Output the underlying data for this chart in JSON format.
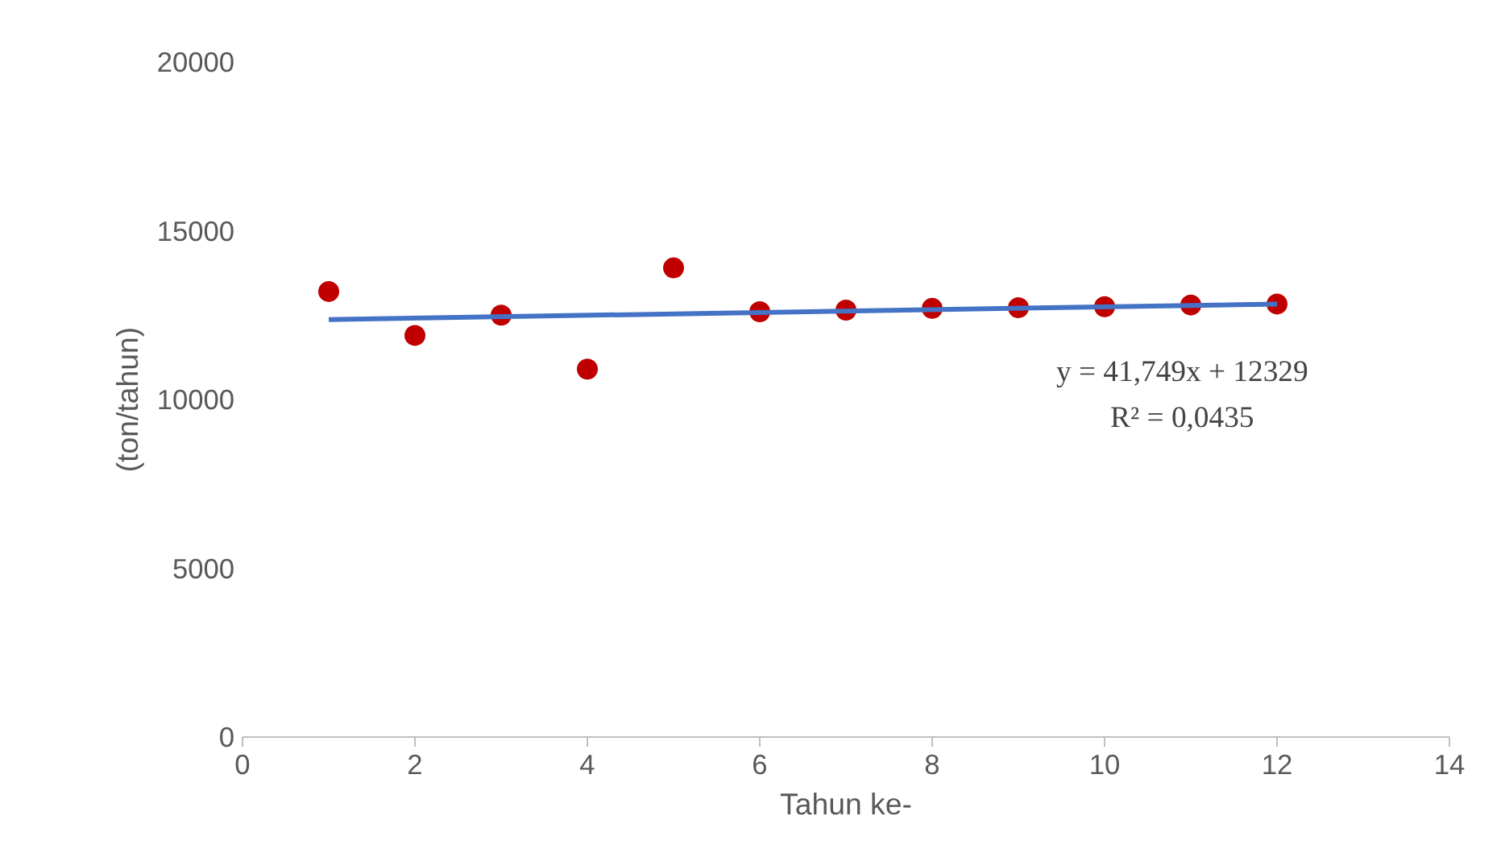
{
  "chart_data": {
    "type": "scatter",
    "xlabel": "Tahun ke-",
    "ylabel": "(ton/tahun)",
    "x": [
      1,
      2,
      3,
      4,
      5,
      6,
      7,
      8,
      9,
      10,
      11,
      12
    ],
    "series": [
      {
        "color": "#c00000",
        "marker": "circle",
        "values": [
          13200,
          11900,
          12500,
          10900,
          13900,
          12600,
          12650,
          12700,
          12720,
          12750,
          12800,
          12830
        ]
      },
      {
        "type": "line",
        "color": "#4472c4",
        "x": [
          1,
          12
        ],
        "values": [
          12370,
          12830
        ]
      }
    ],
    "annotations": [
      "y = 41,749x + 12329",
      "R² = 0,0435"
    ],
    "xlim": [
      0,
      14
    ],
    "xticks": [
      0,
      2,
      4,
      6,
      8,
      10,
      12,
      14
    ],
    "ylim": [
      0,
      20000
    ],
    "yticks": [
      0,
      5000,
      10000,
      15000,
      20000
    ],
    "grid": false
  }
}
